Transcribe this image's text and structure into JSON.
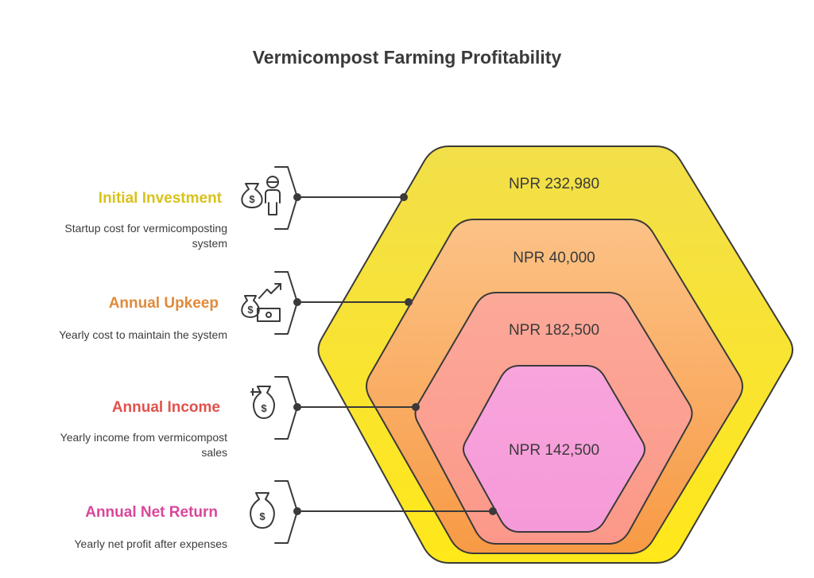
{
  "title": "Vermicompost Farming Profitability",
  "colors": {
    "investment": "#d9c21a",
    "upkeep": "#e08a3a",
    "income": "#e0524d",
    "net_return": "#d9479b",
    "hex_outer": "#f7ea4c",
    "hex_second": "#f9c389",
    "hex_third": "#fca89a",
    "hex_inner": "#f9a2dc"
  },
  "items": [
    {
      "label": "Initial Investment",
      "description_line1": "Startup cost for vermicomposting",
      "description_line2": "system",
      "value": "NPR 232,980",
      "icon": "money-bag-person-icon"
    },
    {
      "label": "Annual Upkeep",
      "description_line1": "Yearly cost to maintain the system",
      "description_line2": "",
      "value": "NPR 40,000",
      "icon": "money-growth-icon"
    },
    {
      "label": "Annual Income",
      "description_line1": "Yearly income from vermicompost",
      "description_line2": "sales",
      "value": "NPR 182,500",
      "icon": "money-bag-income-icon"
    },
    {
      "label": "Annual Net Return",
      "description_line1": "Yearly net profit after expenses",
      "description_line2": "",
      "value": "NPR 142,500",
      "icon": "money-bag-icon"
    }
  ]
}
